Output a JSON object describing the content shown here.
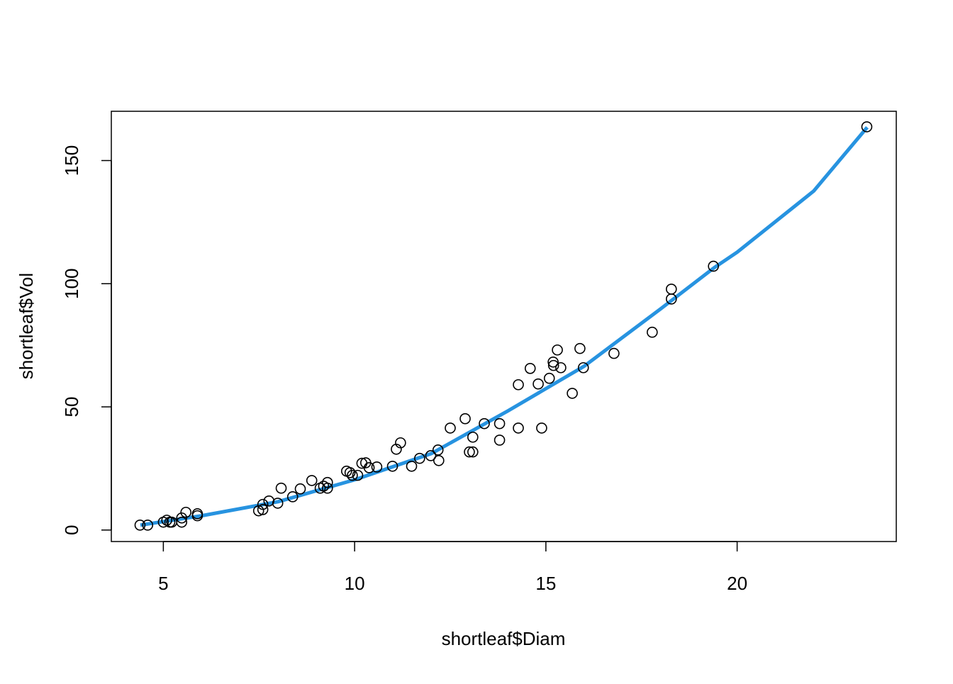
{
  "chart_data": {
    "type": "scatter",
    "x_label": "shortleaf$Diam",
    "y_label": "shortleaf$Vol",
    "xlim": [
      3.64,
      24.16
    ],
    "ylim": [
      -4.67,
      170.0
    ],
    "xticks": [
      5,
      10,
      15,
      20
    ],
    "yticks": [
      0,
      50,
      100,
      150
    ],
    "point_color": "#000000",
    "x": [
      4.39,
      4.59,
      5.0,
      5.09,
      5.17,
      5.22,
      5.48,
      5.48,
      5.59,
      5.89,
      5.89,
      7.49,
      7.6,
      7.6,
      7.76,
      7.99,
      8.08,
      8.38,
      8.58,
      8.88,
      9.1,
      9.19,
      9.29,
      9.29,
      9.79,
      9.88,
      9.94,
      10.08,
      10.19,
      10.29,
      10.38,
      10.58,
      10.99,
      11.09,
      11.2,
      11.49,
      11.7,
      11.99,
      12.18,
      12.2,
      12.5,
      12.89,
      13.0,
      13.09,
      13.09,
      13.39,
      13.79,
      13.79,
      14.28,
      14.28,
      14.59,
      14.8,
      14.89,
      15.09,
      15.19,
      15.2,
      15.3,
      15.39,
      15.69,
      15.89,
      15.98,
      16.78,
      17.78,
      18.28,
      18.28,
      19.38,
      23.39
    ],
    "y": [
      2.0,
      2.0,
      3.2,
      4.0,
      3.2,
      3.2,
      3.2,
      4.9,
      7.2,
      5.8,
      6.6,
      7.8,
      8.3,
      10.4,
      11.8,
      10.9,
      17.0,
      13.5,
      16.7,
      20.1,
      17.0,
      17.8,
      19.3,
      17.0,
      23.9,
      23.3,
      22.2,
      22.2,
      27.1,
      27.3,
      25.3,
      25.6,
      25.9,
      32.8,
      35.4,
      25.9,
      29.1,
      30.2,
      32.5,
      28.2,
      41.4,
      45.2,
      31.7,
      31.7,
      37.7,
      43.2,
      43.2,
      36.5,
      59.0,
      41.4,
      65.6,
      59.3,
      41.4,
      61.6,
      68.2,
      66.8,
      73.1,
      65.9,
      55.5,
      73.7,
      65.9,
      71.7,
      80.3,
      97.8,
      93.8,
      107.1,
      163.7
    ],
    "fit": {
      "color": "#2793e0",
      "x": [
        4.4,
        6,
        8,
        10,
        12,
        14,
        16,
        18,
        19.4,
        20,
        22,
        23.4
      ],
      "y": [
        2.0,
        5.8,
        11.5,
        20.4,
        31.0,
        48.3,
        66.5,
        89.8,
        106.5,
        112.8,
        137.6,
        163.5
      ]
    }
  }
}
